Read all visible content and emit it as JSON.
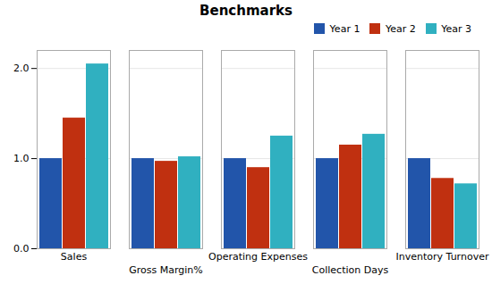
{
  "chart_data": {
    "type": "bar",
    "title": "Benchmarks",
    "categories": [
      "Sales",
      "Gross Margin%",
      "Operating Expenses",
      "Collection Days",
      "Inventory Turnover"
    ],
    "series": [
      {
        "name": "Year 1",
        "color": "#2255AA",
        "values": [
          1.0,
          1.0,
          1.0,
          1.0,
          1.0
        ]
      },
      {
        "name": "Year 2",
        "color": "#C03010",
        "values": [
          1.45,
          0.97,
          0.9,
          1.15,
          0.78
        ]
      },
      {
        "name": "Year 3",
        "color": "#30B0C0",
        "values": [
          2.05,
          1.02,
          1.25,
          1.27,
          0.72
        ]
      }
    ],
    "ylim": [
      0.0,
      2.2
    ],
    "yticks": [
      {
        "value": 0.0,
        "label": "0.0"
      },
      {
        "value": 1.0,
        "label": "1.0"
      },
      {
        "value": 2.0,
        "label": "2.0"
      }
    ],
    "grid": true,
    "legend": "upper right"
  }
}
